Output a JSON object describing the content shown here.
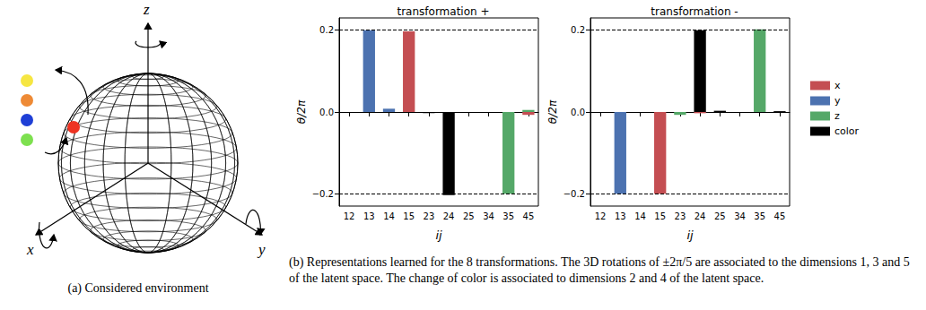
{
  "panel_a": {
    "caption": "(a) Considered environment",
    "axes": [
      "x",
      "y",
      "z"
    ]
  },
  "chart_data": [
    {
      "type": "bar",
      "title": "transformation +",
      "xlabel": "ij",
      "ylabel": "θ/2π",
      "categories": [
        "12",
        "13",
        "14",
        "15",
        "23",
        "24",
        "25",
        "34",
        "35",
        "45"
      ],
      "series": [
        {
          "name": "x",
          "color": "#c44e52",
          "values": [
            0,
            0,
            0,
            0.197,
            0,
            0,
            0,
            0,
            0,
            -0.007
          ]
        },
        {
          "name": "y",
          "color": "#4c72b0",
          "values": [
            0,
            0.2,
            0.008,
            0,
            0,
            0,
            0,
            0,
            0,
            0
          ]
        },
        {
          "name": "z",
          "color": "#55a868",
          "values": [
            0,
            0,
            0,
            0,
            0,
            0,
            0,
            0,
            -0.2,
            0.005
          ]
        },
        {
          "name": "color",
          "color": "#000000",
          "values": [
            0,
            0,
            0,
            0,
            -0.003,
            -0.203,
            0,
            0,
            0,
            0
          ]
        }
      ],
      "ylim": [
        -0.23,
        0.23
      ],
      "yticks": [
        {
          "value": -0.2,
          "label": "−0.2"
        },
        {
          "value": 0,
          "label": "0.0"
        },
        0.2
      ],
      "reference_lines": [
        -0.2,
        0.2
      ],
      "grid": false,
      "legend": "right"
    },
    {
      "type": "bar",
      "title": "transformation -",
      "xlabel": "ij",
      "ylabel": "θ/2π",
      "categories": [
        "12",
        "13",
        "14",
        "15",
        "23",
        "24",
        "25",
        "34",
        "35",
        "45"
      ],
      "series": [
        {
          "name": "x",
          "color": "#c44e52",
          "values": [
            0,
            0,
            0,
            -0.2,
            0,
            -0.003,
            0,
            0,
            0,
            0
          ]
        },
        {
          "name": "y",
          "color": "#4c72b0",
          "values": [
            0,
            -0.2,
            0,
            0,
            0,
            0,
            0,
            0,
            0,
            0
          ]
        },
        {
          "name": "z",
          "color": "#55a868",
          "values": [
            0,
            0,
            0,
            0,
            -0.007,
            0,
            0,
            0,
            0.202,
            0
          ]
        },
        {
          "name": "color",
          "color": "#000000",
          "values": [
            0,
            0,
            0,
            0,
            0,
            0.2,
            0.003,
            0,
            0,
            0.002
          ]
        }
      ],
      "ylim": [
        -0.23,
        0.23
      ],
      "yticks": [
        {
          "value": -0.2,
          "label": "−0.2"
        },
        {
          "value": 0,
          "label": "0.0"
        },
        0.2
      ],
      "reference_lines": [
        -0.2,
        0.2
      ],
      "grid": false,
      "legend": "right"
    }
  ],
  "caption_b": "(b) Representations learned for the 8 transformations. The 3D rotations of ±2π/5 are associated to the dimensions 1, 3 and 5 of the latent space. The change of color is associated to dimensions 2 and 4 of the latent space."
}
